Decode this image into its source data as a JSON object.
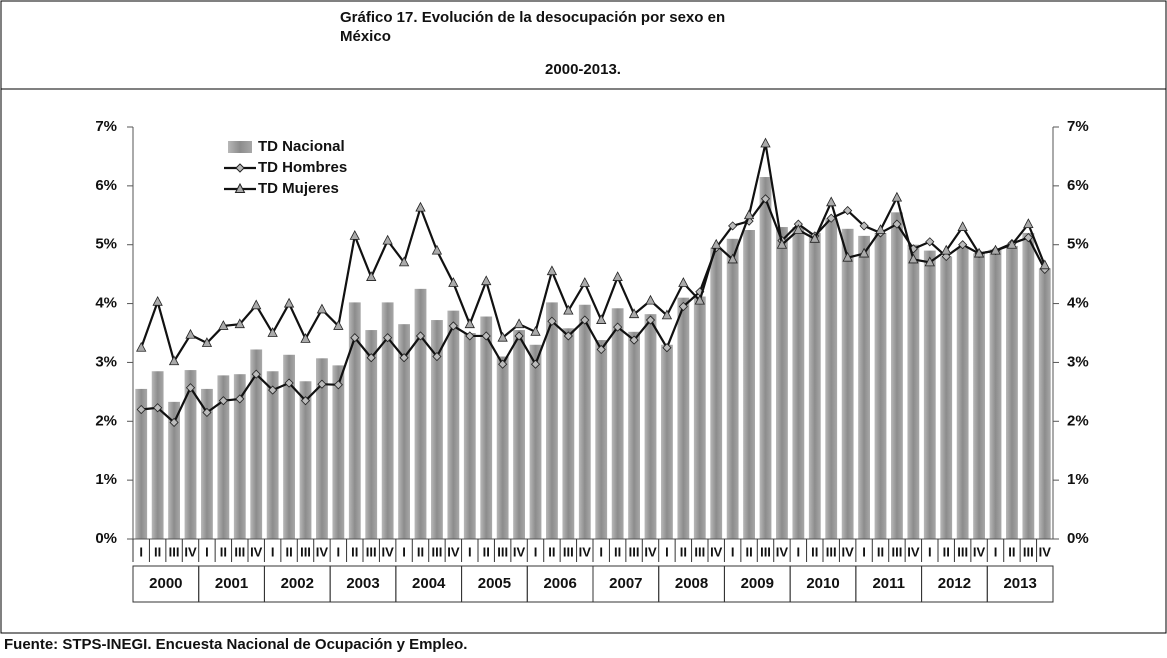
{
  "chart_data": {
    "type": "bar_line",
    "title": "Gráfico 17.   Evolución de la desocupación por sexo en México",
    "subtitle": "2000-2013.",
    "source": "Fuente: STPS-INEGI. Encuesta Nacional de Ocupación y Empleo.",
    "categories": [
      "I",
      "II",
      "III",
      "IV",
      "I",
      "II",
      "III",
      "IV",
      "I",
      "II",
      "III",
      "IV",
      "I",
      "II",
      "III",
      "IV",
      "I",
      "II",
      "III",
      "IV",
      "I",
      "II",
      "III",
      "IV",
      "I",
      "II",
      "III",
      "IV",
      "I",
      "II",
      "III",
      "IV",
      "I",
      "II",
      "III",
      "IV",
      "I",
      "II",
      "III",
      "IV",
      "I",
      "II",
      "III",
      "IV",
      "I",
      "II",
      "III",
      "IV",
      "I",
      "II",
      "III",
      "IV",
      "I",
      "II",
      "III",
      "IV"
    ],
    "years": [
      "2000",
      "2001",
      "2002",
      "2003",
      "2004",
      "2005",
      "2006",
      "2007",
      "2008",
      "2009",
      "2010",
      "2011",
      "2012",
      "2013"
    ],
    "series": [
      {
        "name": "TD Nacional",
        "kind": "bar",
        "color": "#9a9a9a",
        "values": [
          2.55,
          2.85,
          2.33,
          2.87,
          2.55,
          2.78,
          2.8,
          3.22,
          2.85,
          3.13,
          2.68,
          3.07,
          2.95,
          4.02,
          3.55,
          4.02,
          3.65,
          4.25,
          3.72,
          3.88,
          3.5,
          3.78,
          3.1,
          3.55,
          3.3,
          4.02,
          3.58,
          3.98,
          3.38,
          3.92,
          3.52,
          3.82,
          3.3,
          4.1,
          4.12,
          4.95,
          5.1,
          5.25,
          6.15,
          5.3,
          5.3,
          5.2,
          5.45,
          5.27,
          5.15,
          5.2,
          5.55,
          5.0,
          4.9,
          4.8,
          4.95,
          4.85,
          4.92,
          4.98,
          5.2,
          4.6
        ]
      },
      {
        "name": "TD Hombres",
        "kind": "line",
        "marker": "diamond",
        "color": "#111111",
        "values": [
          2.2,
          2.23,
          1.98,
          2.57,
          2.15,
          2.35,
          2.38,
          2.8,
          2.53,
          2.65,
          2.35,
          2.63,
          2.62,
          3.42,
          3.08,
          3.42,
          3.08,
          3.45,
          3.1,
          3.62,
          3.45,
          3.45,
          2.97,
          3.45,
          2.97,
          3.7,
          3.45,
          3.72,
          3.22,
          3.6,
          3.38,
          3.72,
          3.25,
          3.95,
          4.2,
          4.95,
          5.32,
          5.4,
          5.78,
          5.07,
          5.35,
          5.15,
          5.45,
          5.58,
          5.32,
          5.2,
          5.35,
          4.93,
          5.05,
          4.8,
          5.0,
          4.85,
          4.9,
          5.02,
          5.12,
          4.58
        ]
      },
      {
        "name": "TD Mujeres",
        "kind": "line",
        "marker": "triangle",
        "color": "#111111",
        "values": [
          3.25,
          4.03,
          3.02,
          3.47,
          3.33,
          3.62,
          3.65,
          3.97,
          3.5,
          4.0,
          3.4,
          3.9,
          3.62,
          5.15,
          4.45,
          5.07,
          4.7,
          5.63,
          4.9,
          4.35,
          3.65,
          4.38,
          3.42,
          3.65,
          3.52,
          4.55,
          3.88,
          4.35,
          3.72,
          4.45,
          3.82,
          4.05,
          3.8,
          4.35,
          4.05,
          5.0,
          4.75,
          5.5,
          6.72,
          5.0,
          5.25,
          5.1,
          5.72,
          4.78,
          4.85,
          5.25,
          5.8,
          4.75,
          4.7,
          4.9,
          5.3,
          4.85,
          4.9,
          5.0,
          5.35,
          4.65
        ]
      }
    ],
    "ylim": [
      0,
      7
    ],
    "yticks": [
      {
        "value": 0,
        "label": "0%"
      },
      {
        "value": 1,
        "label": "1%"
      },
      {
        "value": 2,
        "label": "2%"
      },
      {
        "value": 3,
        "label": "3%"
      },
      {
        "value": 4,
        "label": "4%"
      },
      {
        "value": 5,
        "label": "5%"
      },
      {
        "value": 6,
        "label": "6%"
      },
      {
        "value": 7,
        "label": "7%"
      }
    ],
    "y2lim": [
      0,
      7
    ],
    "y2ticks": [
      {
        "value": 0,
        "label": "0%"
      },
      {
        "value": 1,
        "label": "1%"
      },
      {
        "value": 2,
        "label": "2%"
      },
      {
        "value": 3,
        "label": "3%"
      },
      {
        "value": 4,
        "label": "4%"
      },
      {
        "value": 5,
        "label": "5%"
      },
      {
        "value": 6,
        "label": "6%"
      },
      {
        "value": 7,
        "label": "7%"
      }
    ],
    "legend": "top-left"
  }
}
